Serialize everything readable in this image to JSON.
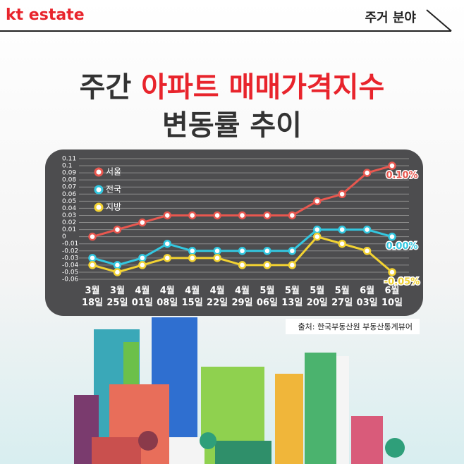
{
  "header": {
    "logo": "kt estate",
    "section": "주거 분야"
  },
  "chart_data": {
    "type": "line",
    "title_parts": [
      "주간 ",
      "아파트 매매가격지수",
      "변동률 추이"
    ],
    "categories": [
      "3월 18일",
      "3월 25일",
      "4월 01일",
      "4월 08일",
      "4월 15일",
      "4월 22일",
      "4월 29일",
      "5월 06일",
      "5월 13일",
      "5월 20일",
      "5월 27일",
      "6월 03일",
      "6월 10일"
    ],
    "series": [
      {
        "name": "서울",
        "color": "#e8574f",
        "values": [
          0,
          0.01,
          0.02,
          0.03,
          0.03,
          0.03,
          0.03,
          0.03,
          0.03,
          0.05,
          0.06,
          0.09,
          0.1
        ],
        "value_labels": [
          null,
          null,
          null,
          null,
          null,
          null,
          null,
          null,
          null,
          null,
          null,
          null,
          "0.10%"
        ]
      },
      {
        "name": "전국",
        "color": "#33c7e0",
        "values": [
          -0.03,
          -0.04,
          -0.03,
          -0.01,
          -0.02,
          -0.02,
          -0.02,
          -0.02,
          -0.02,
          0.01,
          0.01,
          0.01,
          0
        ],
        "value_labels": [
          null,
          null,
          null,
          null,
          null,
          null,
          null,
          null,
          null,
          null,
          null,
          null,
          "0.00%"
        ]
      },
      {
        "name": "지방",
        "color": "#f2d232",
        "values": [
          -0.04,
          -0.05,
          -0.04,
          -0.03,
          -0.03,
          -0.03,
          -0.04,
          -0.04,
          -0.04,
          0,
          -0.01,
          -0.02,
          -0.05
        ],
        "value_labels": [
          null,
          null,
          null,
          null,
          null,
          null,
          null,
          null,
          null,
          null,
          null,
          null,
          "-0.05%"
        ]
      }
    ],
    "ylim": [
      -0.06,
      0.11
    ],
    "yticks": [
      0.11,
      0.1,
      0.09,
      0.08,
      0.07,
      0.06,
      0.05,
      0.04,
      0.03,
      0.02,
      0.01,
      0,
      -0.01,
      -0.02,
      -0.03,
      -0.04,
      -0.05,
      -0.06
    ],
    "grid": true,
    "legend": "upper left",
    "source": "출처: 한국부동산원 부동산통계뷰어"
  }
}
